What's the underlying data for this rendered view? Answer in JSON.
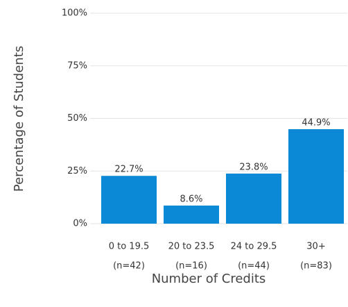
{
  "chart_data": {
    "type": "bar",
    "y_axis_label": "Percentage of Students",
    "x_axis_label": "Number of Credits",
    "categories": [
      [
        "0 to 19.5",
        "(n=42)"
      ],
      [
        "20 to 23.5",
        "(n=16)"
      ],
      [
        "24 to 29.5",
        "(n=44)"
      ],
      [
        "30+",
        "(n=83)"
      ]
    ],
    "values": [
      22.7,
      8.6,
      23.8,
      44.9
    ],
    "value_labels": [
      "22.7%",
      "8.6%",
      "23.8%",
      "44.9%"
    ],
    "color": "#0b88d6",
    "ylim": [
      0,
      100
    ],
    "yticks": [
      {
        "value": 0,
        "label": "0%"
      },
      {
        "value": 25,
        "label": "25%"
      },
      {
        "value": 50,
        "label": "50%"
      },
      {
        "value": 75,
        "label": "75%"
      },
      {
        "value": 100,
        "label": "100%"
      }
    ],
    "grid": true
  }
}
